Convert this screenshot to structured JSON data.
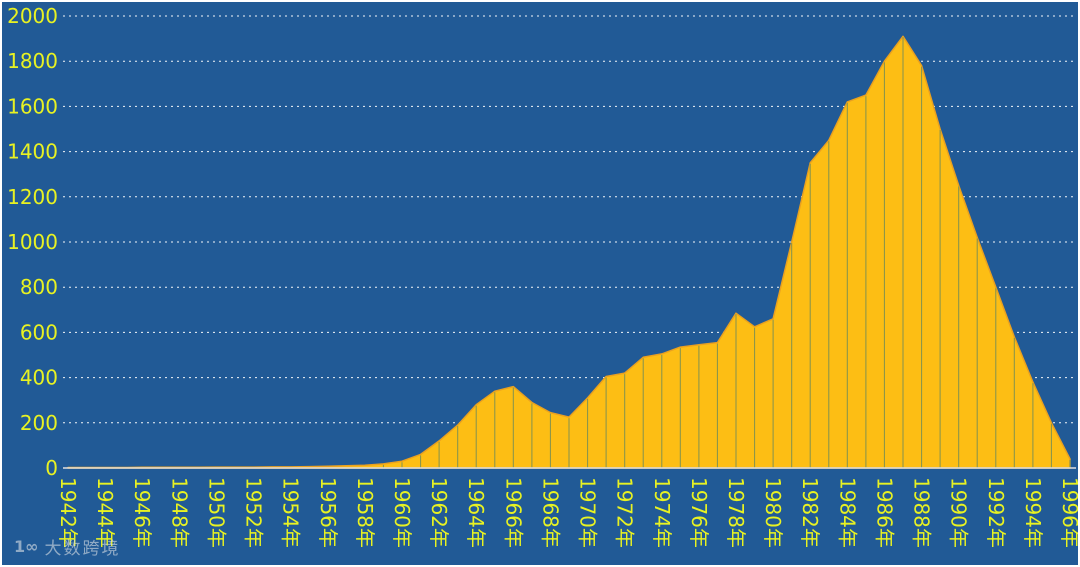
{
  "chart_data": {
    "type": "area",
    "title": "",
    "xlabel": "",
    "ylabel": "",
    "x": [
      1942,
      1943,
      1944,
      1945,
      1946,
      1947,
      1948,
      1949,
      1950,
      1951,
      1952,
      1953,
      1954,
      1955,
      1956,
      1957,
      1958,
      1959,
      1960,
      1961,
      1962,
      1963,
      1964,
      1965,
      1966,
      1967,
      1968,
      1969,
      1970,
      1971,
      1972,
      1973,
      1974,
      1975,
      1976,
      1977,
      1978,
      1979,
      1980,
      1981,
      1982,
      1983,
      1984,
      1985,
      1986,
      1987,
      1988,
      1989,
      1990,
      1991,
      1992,
      1993,
      1994,
      1995,
      1996
    ],
    "values": [
      2,
      2,
      2,
      2,
      3,
      3,
      3,
      3,
      4,
      4,
      4,
      5,
      5,
      6,
      8,
      10,
      12,
      18,
      30,
      60,
      120,
      190,
      280,
      340,
      360,
      290,
      245,
      225,
      310,
      405,
      420,
      490,
      505,
      535,
      545,
      555,
      685,
      625,
      660,
      1000,
      1350,
      1450,
      1620,
      1650,
      1800,
      1910,
      1780,
      1500,
      1250,
      1020,
      800,
      580,
      380,
      200,
      40
    ],
    "x_tick_every": 2,
    "x_tick_labels": [
      "1942年",
      "1944年",
      "1946年",
      "1948年",
      "1950年",
      "1952年",
      "1954年",
      "1956年",
      "1958年",
      "1960年",
      "1962年",
      "1964年",
      "1966年",
      "1968年",
      "1970年",
      "1972年",
      "1974年",
      "1976年",
      "1978年",
      "1980年",
      "1982年",
      "1984年",
      "1986年",
      "1988年",
      "1990年",
      "1992年",
      "1994年",
      "1996年"
    ],
    "ylim": [
      0,
      2000
    ],
    "y_ticks": [
      0,
      200,
      400,
      600,
      800,
      1000,
      1200,
      1400,
      1600,
      1800,
      2000
    ],
    "y_tick_labels": [
      "0",
      "200",
      "400",
      "600",
      "800",
      "1000",
      "1200",
      "1400",
      "1600",
      "1800",
      "2000"
    ],
    "grid": {
      "horizontal": "dotted white lines at every 200",
      "vertical": "olive drop lines at each year, visible inside filled area only"
    },
    "legend": "none"
  },
  "colors": {
    "background": "#215A96",
    "area_fill": "#FDBE14",
    "area_stroke": "#EAA11F",
    "tick_label": "#E8F222",
    "gridline": "#FFFFFF",
    "drop_line": "#82924F",
    "axis_line": "#E0E0E0",
    "watermark": "#D5DCE3"
  },
  "watermark": {
    "logo_glyph": "1∞",
    "text": "大数跨境"
  }
}
